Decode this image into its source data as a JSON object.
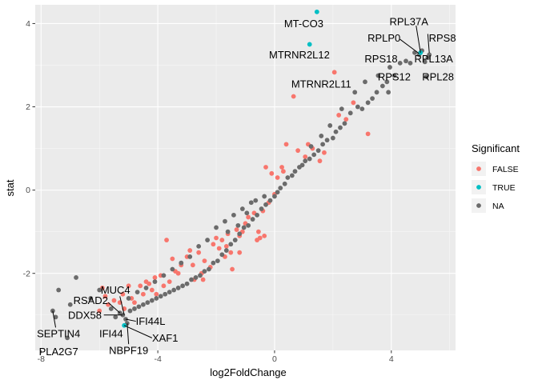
{
  "chart_data": {
    "type": "scatter",
    "xlabel": "log2FoldChange",
    "ylabel": "stat",
    "xlim": [
      -8.2,
      6.2
    ],
    "ylim": [
      -3.85,
      4.45
    ],
    "xticks": [
      -8,
      -4,
      0,
      4
    ],
    "yticks": [
      -2,
      0,
      2,
      4
    ],
    "xtick_labels": [
      "-8",
      "-4",
      "0",
      "4"
    ],
    "ytick_labels": [
      "-2",
      "0",
      "2",
      "4"
    ],
    "grid": true,
    "legend": {
      "title": "Significant",
      "placement": "right",
      "entries": [
        {
          "label": "FALSE",
          "color": "#F8766D"
        },
        {
          "label": "TRUE",
          "color": "#00BFC4"
        },
        {
          "label": "NA",
          "color": "#6B6B6B"
        }
      ]
    },
    "colors": {
      "FALSE": "#F8766D",
      "TRUE": "#00BFC4",
      "NA": "#6B6B6B",
      "panel": "#EBEBEB"
    },
    "series": [
      {
        "name": "FALSE",
        "points": [
          [
            2.05,
            2.83
          ],
          [
            0.65,
            2.25
          ],
          [
            2.7,
            2.1
          ],
          [
            2.2,
            1.8
          ],
          [
            2.45,
            1.7
          ],
          [
            3.2,
            1.35
          ],
          [
            0.4,
            1.1
          ],
          [
            0.8,
            0.95
          ],
          [
            1.15,
            1.1
          ],
          [
            1.3,
            1.0
          ],
          [
            1.7,
            0.9
          ],
          [
            1.05,
            0.8
          ],
          [
            1.55,
            0.7
          ],
          [
            0.25,
            0.55
          ],
          [
            0.3,
            0.45
          ],
          [
            0.1,
            0.3
          ],
          [
            -0.3,
            0.55
          ],
          [
            -0.1,
            0.4
          ],
          [
            0.0,
            -0.1
          ],
          [
            -0.2,
            -0.3
          ],
          [
            -0.4,
            -0.5
          ],
          [
            -0.7,
            -0.55
          ],
          [
            -0.9,
            -0.65
          ],
          [
            -1.0,
            -0.8
          ],
          [
            -1.1,
            -1.0
          ],
          [
            -1.3,
            -0.95
          ],
          [
            -1.6,
            -1.05
          ],
          [
            -1.8,
            -1.2
          ],
          [
            -2.0,
            -1.15
          ],
          [
            -1.2,
            -1.1
          ],
          [
            -1.5,
            -1.5
          ],
          [
            -1.7,
            -1.6
          ],
          [
            -0.6,
            -1.2
          ],
          [
            -0.5,
            -1.15
          ],
          [
            -0.35,
            -1.1
          ],
          [
            -0.55,
            -1.0
          ],
          [
            -1.2,
            -1.5
          ],
          [
            -1.45,
            -1.9
          ],
          [
            -2.4,
            -1.7
          ],
          [
            -2.6,
            -1.5
          ],
          [
            -2.9,
            -1.45
          ],
          [
            -3.0,
            -1.6
          ],
          [
            -2.8,
            -1.8
          ],
          [
            -2.5,
            -2.0
          ],
          [
            -2.75,
            -2.15
          ],
          [
            -3.2,
            -1.8
          ],
          [
            -3.5,
            -1.65
          ],
          [
            -3.7,
            -1.2
          ],
          [
            -3.3,
            -2.0
          ],
          [
            -3.6,
            -2.2
          ],
          [
            -3.8,
            -2.3
          ],
          [
            -3.9,
            -2.05
          ],
          [
            -4.1,
            -2.1
          ],
          [
            -4.3,
            -2.25
          ],
          [
            -4.2,
            -2.4
          ],
          [
            -4.6,
            -2.3
          ],
          [
            -4.5,
            -2.5
          ],
          [
            -4.8,
            -2.7
          ],
          [
            -5.0,
            -2.3
          ],
          [
            -5.2,
            -2.5
          ],
          [
            -5.3,
            -2.7
          ],
          [
            -5.15,
            -2.85
          ],
          [
            -4.9,
            -2.6
          ],
          [
            -5.5,
            -2.65
          ],
          [
            -5.8,
            -2.55
          ],
          [
            -5.7,
            -2.75
          ],
          [
            -6.0,
            -2.9
          ],
          [
            -5.9,
            -2.35
          ],
          [
            -4.4,
            -2.2
          ],
          [
            -4.05,
            -2.5
          ],
          [
            -3.4,
            -1.95
          ],
          [
            -2.1,
            -1.3
          ],
          [
            -1.9,
            -1.4
          ],
          [
            -2.2,
            -1.85
          ],
          [
            -2.45,
            -2.15
          ],
          [
            -1.65,
            -1.35
          ]
        ]
      },
      {
        "name": "TRUE",
        "points": [
          [
            1.45,
            4.28
          ],
          [
            1.2,
            3.5
          ],
          [
            5.0,
            3.3
          ],
          [
            -5.15,
            -3.25
          ]
        ]
      },
      {
        "name": "NA",
        "points": [
          [
            4.8,
            3.3
          ],
          [
            5.05,
            3.35
          ],
          [
            5.25,
            3.18
          ],
          [
            5.3,
            3.25
          ],
          [
            4.95,
            3.25
          ],
          [
            4.5,
            3.1
          ],
          [
            4.65,
            3.05
          ],
          [
            5.2,
            2.72
          ],
          [
            4.1,
            2.75
          ],
          [
            3.85,
            2.6
          ],
          [
            3.7,
            2.5
          ],
          [
            3.9,
            2.35
          ],
          [
            3.5,
            2.35
          ],
          [
            3.35,
            2.2
          ],
          [
            3.2,
            2.1
          ],
          [
            3.0,
            1.95
          ],
          [
            2.85,
            2.0
          ],
          [
            2.6,
            1.85
          ],
          [
            2.4,
            1.6
          ],
          [
            2.25,
            1.5
          ],
          [
            2.1,
            1.4
          ],
          [
            2.0,
            1.25
          ],
          [
            1.8,
            1.2
          ],
          [
            1.65,
            1.1
          ],
          [
            1.5,
            0.95
          ],
          [
            1.35,
            0.85
          ],
          [
            1.2,
            0.75
          ],
          [
            1.05,
            0.7
          ],
          [
            0.95,
            0.6
          ],
          [
            0.85,
            0.55
          ],
          [
            0.7,
            0.45
          ],
          [
            0.6,
            0.35
          ],
          [
            0.45,
            0.3
          ],
          [
            0.35,
            0.15
          ],
          [
            0.2,
            0.05
          ],
          [
            0.1,
            -0.05
          ],
          [
            0.0,
            -0.15
          ],
          [
            -0.15,
            -0.25
          ],
          [
            -0.3,
            -0.35
          ],
          [
            -0.45,
            -0.45
          ],
          [
            -0.6,
            -0.6
          ],
          [
            -0.75,
            -0.7
          ],
          [
            -0.9,
            -0.85
          ],
          [
            -1.05,
            -0.9
          ],
          [
            -1.2,
            -1.05
          ],
          [
            -1.35,
            -1.2
          ],
          [
            -1.5,
            -1.3
          ],
          [
            -1.65,
            -1.45
          ],
          [
            -1.8,
            -1.55
          ],
          [
            -1.95,
            -1.7
          ],
          [
            -2.1,
            -1.75
          ],
          [
            -2.25,
            -1.9
          ],
          [
            -2.4,
            -1.95
          ],
          [
            -2.55,
            -2.05
          ],
          [
            -2.7,
            -2.1
          ],
          [
            -2.85,
            -2.15
          ],
          [
            -3.0,
            -2.25
          ],
          [
            -3.15,
            -2.3
          ],
          [
            -3.3,
            -2.35
          ],
          [
            -3.45,
            -2.4
          ],
          [
            -3.6,
            -2.45
          ],
          [
            -3.75,
            -2.5
          ],
          [
            -3.9,
            -2.55
          ],
          [
            -4.05,
            -2.6
          ],
          [
            -4.2,
            -2.65
          ],
          [
            -4.35,
            -2.7
          ],
          [
            -4.5,
            -2.75
          ],
          [
            -4.65,
            -2.8
          ],
          [
            -4.8,
            -2.85
          ],
          [
            -4.95,
            -2.9
          ],
          [
            -2.0,
            -0.9
          ],
          [
            -1.7,
            -0.75
          ],
          [
            -1.4,
            -0.6
          ],
          [
            -1.1,
            -0.45
          ],
          [
            -0.8,
            -0.3
          ],
          [
            -2.3,
            -1.2
          ],
          [
            -2.6,
            -1.35
          ],
          [
            -2.9,
            -1.6
          ],
          [
            -3.2,
            -1.75
          ],
          [
            -3.5,
            -1.9
          ],
          [
            -3.8,
            -2.05
          ],
          [
            -4.1,
            -2.2
          ],
          [
            -4.4,
            -2.35
          ],
          [
            -4.7,
            -2.45
          ],
          [
            -5.0,
            -2.6
          ],
          [
            -1.6,
            -1.0
          ],
          [
            -1.25,
            -0.85
          ],
          [
            -0.95,
            -0.55
          ],
          [
            -0.65,
            -0.25
          ],
          [
            -0.35,
            -0.15
          ],
          [
            2.75,
            2.35
          ],
          [
            3.1,
            2.6
          ],
          [
            3.55,
            2.75
          ],
          [
            3.95,
            2.95
          ],
          [
            4.3,
            3.05
          ],
          [
            5.15,
            3.08
          ],
          [
            2.3,
            1.95
          ],
          [
            1.9,
            1.55
          ],
          [
            1.6,
            1.3
          ],
          [
            1.25,
            1.05
          ],
          [
            -6.0,
            -2.4
          ],
          [
            -6.3,
            -2.6
          ],
          [
            -6.8,
            -2.1
          ],
          [
            -7.0,
            -2.75
          ],
          [
            -7.4,
            -2.4
          ],
          [
            -7.6,
            -2.9
          ],
          [
            -7.5,
            -3.05
          ],
          [
            -7.1,
            -3.55
          ],
          [
            -5.6,
            -2.85
          ],
          [
            -5.3,
            -2.95
          ],
          [
            -5.2,
            -3.0
          ],
          [
            -5.45,
            -3.05
          ],
          [
            -5.1,
            -3.1
          ],
          [
            -5.05,
            -3.2
          ]
        ]
      }
    ],
    "annotations": [
      {
        "text": "MT-CO3",
        "x": 1.45,
        "y": 4.28,
        "tx": 1.0,
        "ty": 4.0
      },
      {
        "text": "MTRNR2L12",
        "x": 1.2,
        "y": 3.5,
        "tx": 0.85,
        "ty": 3.25
      },
      {
        "text": "MTRNR2L11",
        "x": 2.05,
        "y": 2.83,
        "tx": 1.6,
        "ty": 2.55
      },
      {
        "text": "RPL37A",
        "x": 5.0,
        "y": 3.3,
        "tx": 4.6,
        "ty": 4.05,
        "line": [
          4.85,
          3.95,
          5.0,
          3.3
        ]
      },
      {
        "text": "RPS8",
        "x": 5.3,
        "y": 3.25,
        "tx": 5.75,
        "ty": 3.65,
        "line": [
          5.25,
          3.75,
          5.3,
          3.3
        ]
      },
      {
        "text": "RPLP0",
        "x": 4.95,
        "y": 3.25,
        "tx": 3.75,
        "ty": 3.65,
        "line": [
          4.3,
          3.62,
          4.95,
          3.28
        ]
      },
      {
        "text": "RPS18",
        "x": 4.8,
        "y": 3.3,
        "tx": 3.65,
        "ty": 3.15
      },
      {
        "text": "RPL13A",
        "x": 5.25,
        "y": 3.18,
        "tx": 5.45,
        "ty": 3.15
      },
      {
        "text": "RPS12",
        "x": 4.5,
        "y": 3.1,
        "tx": 4.1,
        "ty": 2.72
      },
      {
        "text": "RPL28",
        "x": 5.2,
        "y": 2.72,
        "tx": 5.6,
        "ty": 2.72
      },
      {
        "text": "MUC4",
        "x": -5.15,
        "y": -3.0,
        "tx": -5.45,
        "ty": -2.4,
        "line": [
          -5.3,
          -2.55,
          -5.15,
          -3.0
        ]
      },
      {
        "text": "RSAD2",
        "x": -5.3,
        "y": -2.95,
        "tx": -6.3,
        "ty": -2.65,
        "line": [
          -5.7,
          -2.7,
          -5.3,
          -2.95
        ]
      },
      {
        "text": "DDX58",
        "x": -5.2,
        "y": -3.0,
        "tx": -6.5,
        "ty": -3.0,
        "line": [
          -5.85,
          -3.0,
          -5.2,
          -3.0
        ]
      },
      {
        "text": "IFI44L",
        "x": -5.1,
        "y": -3.1,
        "tx": -4.25,
        "ty": -3.15,
        "line": [
          -4.75,
          -3.15,
          -5.1,
          -3.1
        ]
      },
      {
        "text": "SEPTIN4",
        "x": -7.6,
        "y": -2.9,
        "tx": -7.4,
        "ty": -3.45,
        "line": [
          -7.5,
          -3.3,
          -7.6,
          -2.9
        ]
      },
      {
        "text": "IFI44",
        "x": -5.15,
        "y": -3.25,
        "tx": -5.6,
        "ty": -3.45
      },
      {
        "text": "XAF1",
        "x": -5.15,
        "y": -3.25,
        "tx": -3.75,
        "ty": -3.55,
        "line": [
          -4.2,
          -3.55,
          -5.15,
          -3.25
        ]
      },
      {
        "text": "NBPF19",
        "x": -5.05,
        "y": -3.2,
        "tx": -5.0,
        "ty": -3.85,
        "line": [
          -5.0,
          -3.7,
          -5.05,
          -3.2
        ]
      },
      {
        "text": "PLA2G7",
        "x": -7.1,
        "y": -3.55,
        "tx": -7.4,
        "ty": -3.88
      }
    ]
  }
}
